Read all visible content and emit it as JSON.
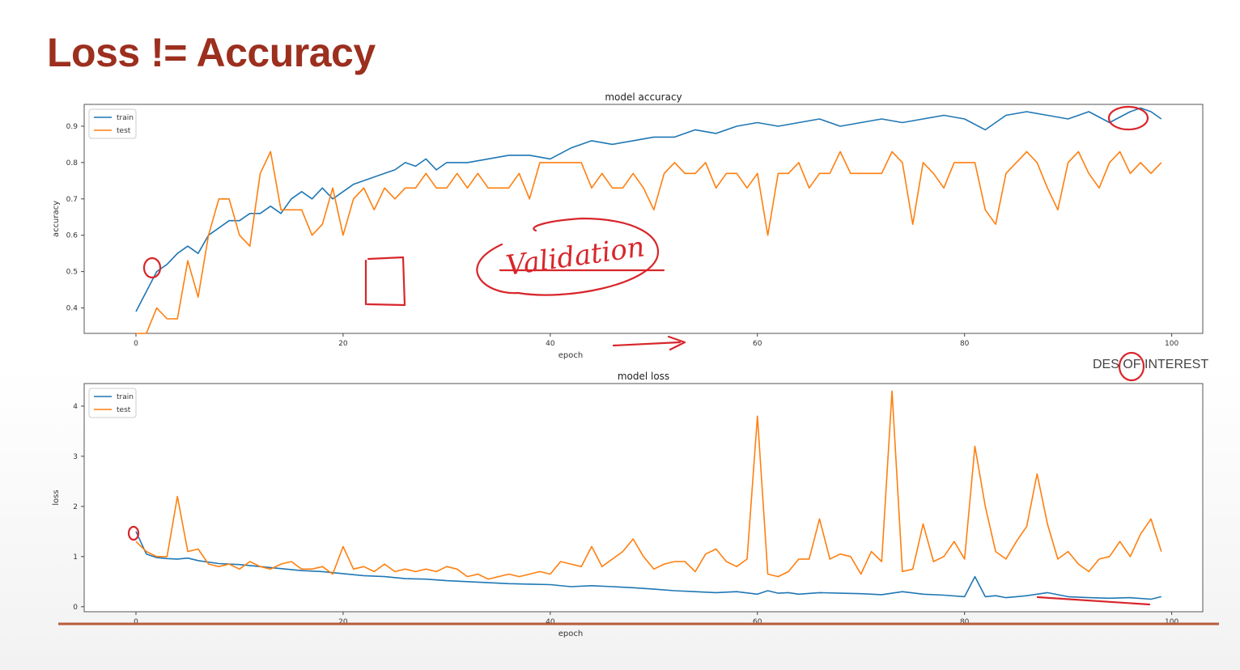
{
  "slide": {
    "title": "Loss != Accuracy"
  },
  "watermark": "DES OF INTEREST",
  "annotation": "Validation",
  "chart_data": [
    {
      "type": "line",
      "title": "model accuracy",
      "xlabel": "epoch",
      "ylabel": "accuracy",
      "xlim": [
        -5,
        103
      ],
      "ylim": [
        0.33,
        0.96
      ],
      "xticks": [
        0,
        20,
        40,
        60,
        80,
        100
      ],
      "yticks": [
        0.4,
        0.5,
        0.6,
        0.7,
        0.8,
        0.9
      ],
      "legend_position": "upper-left",
      "grid": false,
      "series": [
        {
          "name": "train",
          "color": "#1f77b4",
          "x": [
            0,
            2,
            3,
            4,
            5,
            6,
            7,
            8,
            9,
            10,
            11,
            12,
            13,
            14,
            15,
            16,
            17,
            18,
            19,
            20,
            21,
            22,
            24,
            25,
            26,
            27,
            28,
            29,
            30,
            32,
            34,
            36,
            38,
            40,
            42,
            44,
            46,
            48,
            50,
            52,
            54,
            56,
            58,
            60,
            62,
            64,
            66,
            68,
            70,
            72,
            74,
            76,
            78,
            80,
            82,
            84,
            86,
            88,
            90,
            92,
            94,
            96,
            97,
            98,
            99
          ],
          "values": [
            0.39,
            0.5,
            0.52,
            0.55,
            0.57,
            0.55,
            0.6,
            0.62,
            0.64,
            0.64,
            0.66,
            0.66,
            0.68,
            0.66,
            0.7,
            0.72,
            0.7,
            0.73,
            0.7,
            0.72,
            0.74,
            0.75,
            0.77,
            0.78,
            0.8,
            0.79,
            0.81,
            0.78,
            0.8,
            0.8,
            0.81,
            0.82,
            0.82,
            0.81,
            0.84,
            0.86,
            0.85,
            0.86,
            0.87,
            0.87,
            0.89,
            0.88,
            0.9,
            0.91,
            0.9,
            0.91,
            0.92,
            0.9,
            0.91,
            0.92,
            0.91,
            0.92,
            0.93,
            0.92,
            0.89,
            0.93,
            0.94,
            0.93,
            0.92,
            0.94,
            0.91,
            0.94,
            0.95,
            0.94,
            0.92
          ]
        },
        {
          "name": "test",
          "color": "#ff7f0e",
          "x": [
            0,
            1,
            2,
            3,
            4,
            5,
            6,
            7,
            8,
            9,
            10,
            11,
            12,
            13,
            14,
            15,
            16,
            17,
            18,
            19,
            20,
            21,
            22,
            23,
            24,
            25,
            26,
            27,
            28,
            29,
            30,
            31,
            32,
            33,
            34,
            35,
            36,
            37,
            38,
            39,
            40,
            41,
            42,
            43,
            44,
            45,
            46,
            47,
            48,
            49,
            50,
            51,
            52,
            53,
            54,
            55,
            56,
            57,
            58,
            59,
            60,
            61,
            62,
            63,
            64,
            65,
            66,
            67,
            68,
            69,
            70,
            71,
            72,
            73,
            74,
            75,
            76,
            77,
            78,
            79,
            80,
            81,
            82,
            83,
            84,
            85,
            86,
            87,
            88,
            89,
            90,
            91,
            92,
            93,
            94,
            95,
            96,
            97,
            98,
            99
          ],
          "values": [
            0.33,
            0.33,
            0.4,
            0.37,
            0.37,
            0.53,
            0.43,
            0.6,
            0.7,
            0.7,
            0.6,
            0.57,
            0.77,
            0.83,
            0.67,
            0.67,
            0.67,
            0.6,
            0.63,
            0.73,
            0.6,
            0.7,
            0.73,
            0.67,
            0.73,
            0.7,
            0.73,
            0.73,
            0.77,
            0.73,
            0.73,
            0.77,
            0.73,
            0.77,
            0.73,
            0.73,
            0.73,
            0.77,
            0.7,
            0.8,
            0.8,
            0.8,
            0.8,
            0.8,
            0.73,
            0.77,
            0.73,
            0.73,
            0.77,
            0.73,
            0.67,
            0.77,
            0.8,
            0.77,
            0.77,
            0.8,
            0.73,
            0.77,
            0.77,
            0.73,
            0.77,
            0.6,
            0.77,
            0.77,
            0.8,
            0.73,
            0.77,
            0.77,
            0.83,
            0.77,
            0.77,
            0.77,
            0.77,
            0.83,
            0.8,
            0.63,
            0.8,
            0.77,
            0.73,
            0.8,
            0.8,
            0.8,
            0.67,
            0.63,
            0.77,
            0.8,
            0.83,
            0.8,
            0.73,
            0.67,
            0.8,
            0.83,
            0.77,
            0.73,
            0.8,
            0.83,
            0.77,
            0.8,
            0.77,
            0.8
          ]
        }
      ]
    },
    {
      "type": "line",
      "title": "model loss",
      "xlabel": "epoch",
      "ylabel": "loss",
      "xlim": [
        -5,
        103
      ],
      "ylim": [
        -0.1,
        4.45
      ],
      "xticks": [
        0,
        20,
        40,
        60,
        80,
        100
      ],
      "yticks": [
        0,
        1,
        2,
        3,
        4
      ],
      "legend_position": "upper-left",
      "grid": false,
      "series": [
        {
          "name": "train",
          "color": "#1f77b4",
          "x": [
            0,
            1,
            2,
            3,
            4,
            5,
            6,
            8,
            10,
            12,
            14,
            16,
            18,
            20,
            22,
            24,
            26,
            28,
            30,
            32,
            34,
            36,
            38,
            40,
            42,
            44,
            46,
            48,
            50,
            52,
            54,
            56,
            58,
            60,
            61,
            62,
            63,
            64,
            66,
            68,
            70,
            72,
            74,
            76,
            78,
            80,
            81,
            82,
            83,
            84,
            85,
            86,
            88,
            90,
            92,
            94,
            96,
            98,
            99
          ],
          "values": [
            1.5,
            1.05,
            0.98,
            0.96,
            0.95,
            0.97,
            0.92,
            0.86,
            0.84,
            0.8,
            0.76,
            0.72,
            0.7,
            0.66,
            0.62,
            0.6,
            0.56,
            0.55,
            0.52,
            0.5,
            0.48,
            0.46,
            0.45,
            0.44,
            0.4,
            0.42,
            0.4,
            0.38,
            0.35,
            0.32,
            0.3,
            0.28,
            0.3,
            0.25,
            0.32,
            0.27,
            0.28,
            0.25,
            0.28,
            0.27,
            0.26,
            0.24,
            0.3,
            0.25,
            0.23,
            0.2,
            0.6,
            0.2,
            0.22,
            0.18,
            0.2,
            0.22,
            0.28,
            0.2,
            0.18,
            0.17,
            0.18,
            0.15,
            0.2
          ]
        },
        {
          "name": "test",
          "color": "#ff7f0e",
          "x": [
            0,
            1,
            2,
            3,
            4,
            5,
            6,
            7,
            8,
            9,
            10,
            11,
            12,
            13,
            14,
            15,
            16,
            17,
            18,
            19,
            20,
            21,
            22,
            23,
            24,
            25,
            26,
            27,
            28,
            29,
            30,
            31,
            32,
            33,
            34,
            35,
            36,
            37,
            38,
            39,
            40,
            41,
            42,
            43,
            44,
            45,
            46,
            47,
            48,
            49,
            50,
            51,
            52,
            53,
            54,
            55,
            56,
            57,
            58,
            59,
            60,
            61,
            62,
            63,
            64,
            65,
            66,
            67,
            68,
            69,
            70,
            71,
            72,
            73,
            74,
            75,
            76,
            77,
            78,
            79,
            80,
            81,
            82,
            83,
            84,
            85,
            86,
            87,
            88,
            89,
            90,
            91,
            92,
            93,
            94,
            95,
            96,
            97,
            98,
            99
          ],
          "values": [
            1.3,
            1.1,
            1.0,
            1.0,
            2.2,
            1.1,
            1.15,
            0.85,
            0.8,
            0.85,
            0.75,
            0.9,
            0.8,
            0.75,
            0.85,
            0.9,
            0.75,
            0.75,
            0.8,
            0.65,
            1.2,
            0.75,
            0.8,
            0.7,
            0.85,
            0.7,
            0.75,
            0.7,
            0.75,
            0.7,
            0.8,
            0.75,
            0.6,
            0.65,
            0.55,
            0.6,
            0.65,
            0.6,
            0.65,
            0.7,
            0.65,
            0.9,
            0.85,
            0.8,
            1.2,
            0.8,
            0.95,
            1.1,
            1.35,
            1.0,
            0.75,
            0.85,
            0.9,
            0.9,
            0.7,
            1.05,
            1.15,
            0.9,
            0.8,
            0.95,
            3.8,
            0.65,
            0.6,
            0.7,
            0.95,
            0.95,
            1.75,
            0.95,
            1.05,
            1.0,
            0.65,
            1.1,
            0.9,
            4.3,
            0.7,
            0.75,
            1.65,
            0.9,
            1.0,
            1.3,
            0.95,
            3.2,
            2.0,
            1.1,
            0.95,
            1.3,
            1.6,
            2.65,
            1.65,
            0.95,
            1.1,
            0.85,
            0.7,
            0.95,
            1.0,
            1.3,
            1.0,
            1.45,
            1.75,
            1.1
          ]
        }
      ]
    }
  ]
}
